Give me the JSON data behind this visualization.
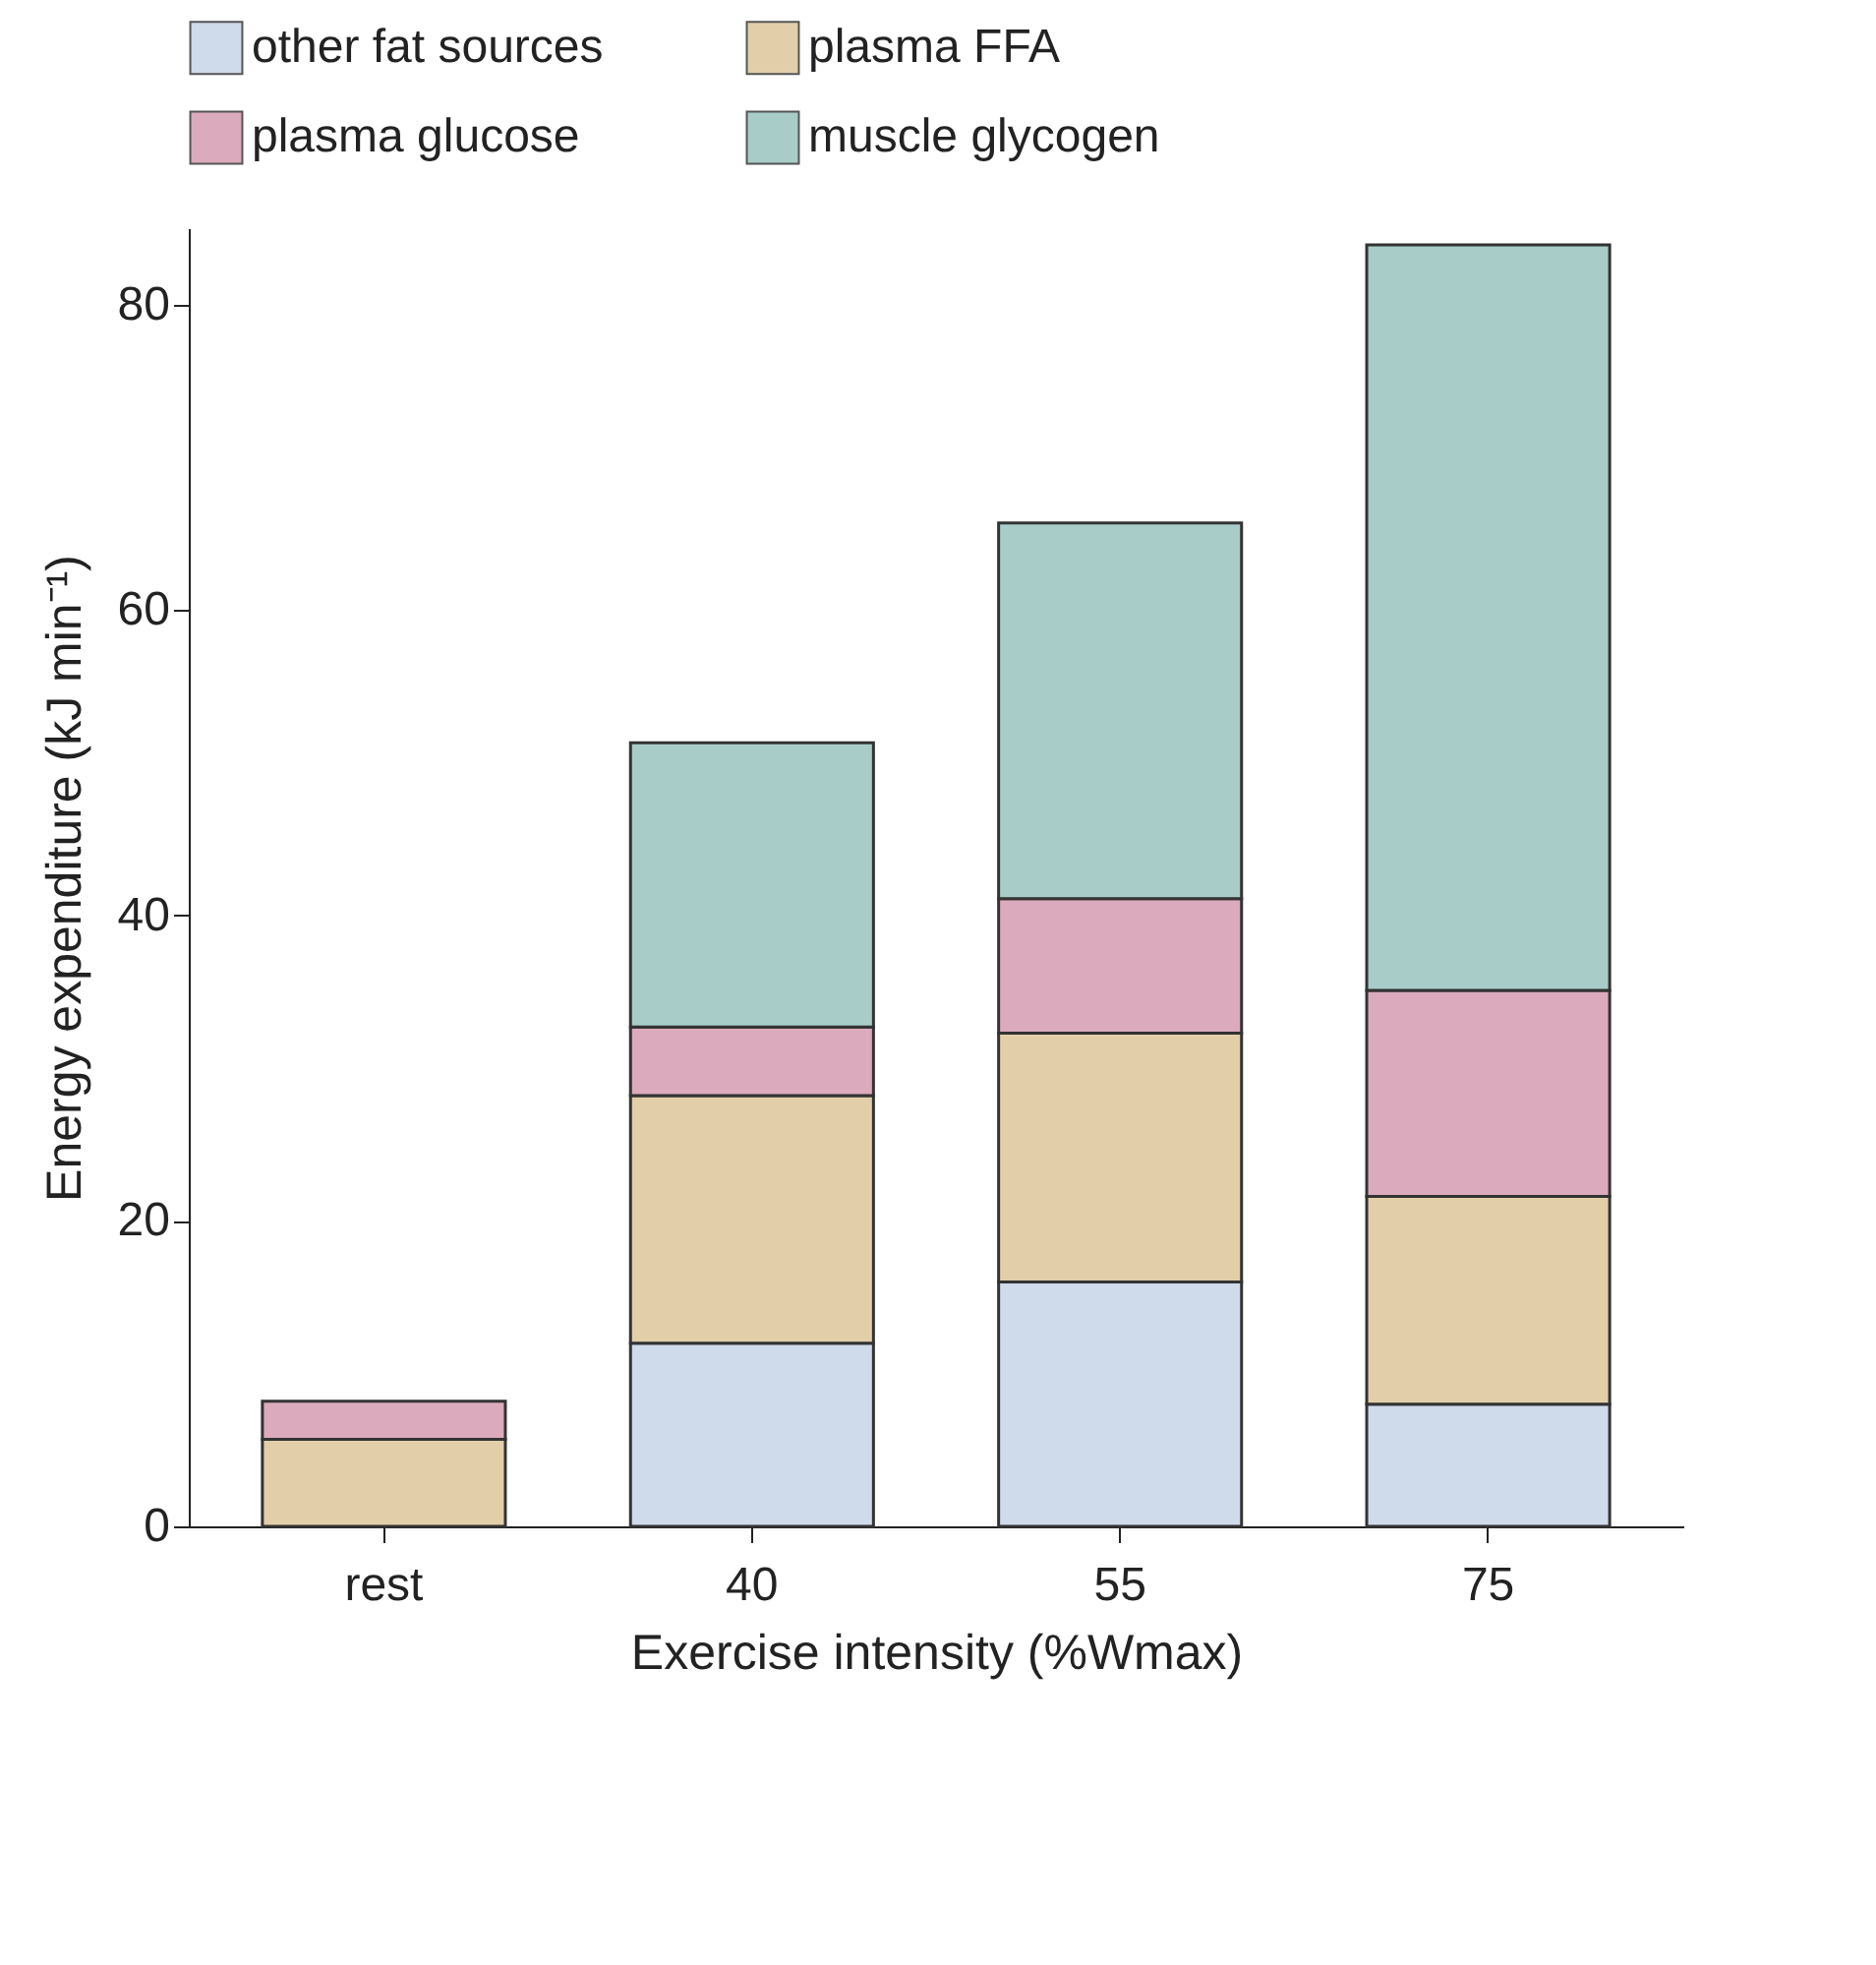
{
  "chart_data": {
    "type": "bar",
    "stacked": true,
    "xlabel": "Exercise intensity (%Wmax)",
    "ylabel": "Energy expenditure (kJ min⁻¹)",
    "categories": [
      "rest",
      "40",
      "55",
      "75"
    ],
    "series": [
      {
        "name": "other fat sources",
        "color": "#cfdaeb",
        "values": [
          0,
          12,
          16,
          8
        ]
      },
      {
        "name": "plasma FFA",
        "color": "#e2cfa9",
        "values": [
          5.7,
          16.2,
          16.3,
          13.6
        ]
      },
      {
        "name": "plasma glucose",
        "color": "#dcaabd",
        "values": [
          2.5,
          4.5,
          8.8,
          13.5
        ]
      },
      {
        "name": "muscle glycogen",
        "color": "#a8cdc8",
        "values": [
          0,
          18.6,
          24.6,
          48.8
        ]
      }
    ],
    "ylim": [
      0,
      85
    ],
    "yticks": [
      0,
      20,
      40,
      60,
      80
    ],
    "grid": false,
    "legend": "top"
  }
}
